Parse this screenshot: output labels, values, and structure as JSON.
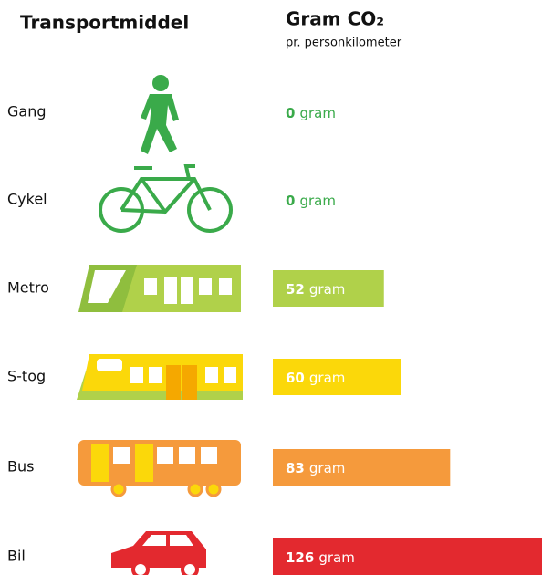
{
  "chart_data": {
    "type": "bar",
    "orientation": "horizontal",
    "left_header": "Transportmiddel",
    "title": "Gram CO₂",
    "subtitle": "pr. personkilometer",
    "categories": [
      "Gang",
      "Cykel",
      "Metro",
      "S-tog",
      "Bus",
      "Bil"
    ],
    "values": [
      0,
      0,
      52,
      60,
      83,
      126
    ],
    "unit": "gram",
    "colors": [
      "#3aaa4a",
      "#3aaa4a",
      "#b0d14a",
      "#fbd80a",
      "#f59a3c",
      "#e3292f"
    ]
  }
}
